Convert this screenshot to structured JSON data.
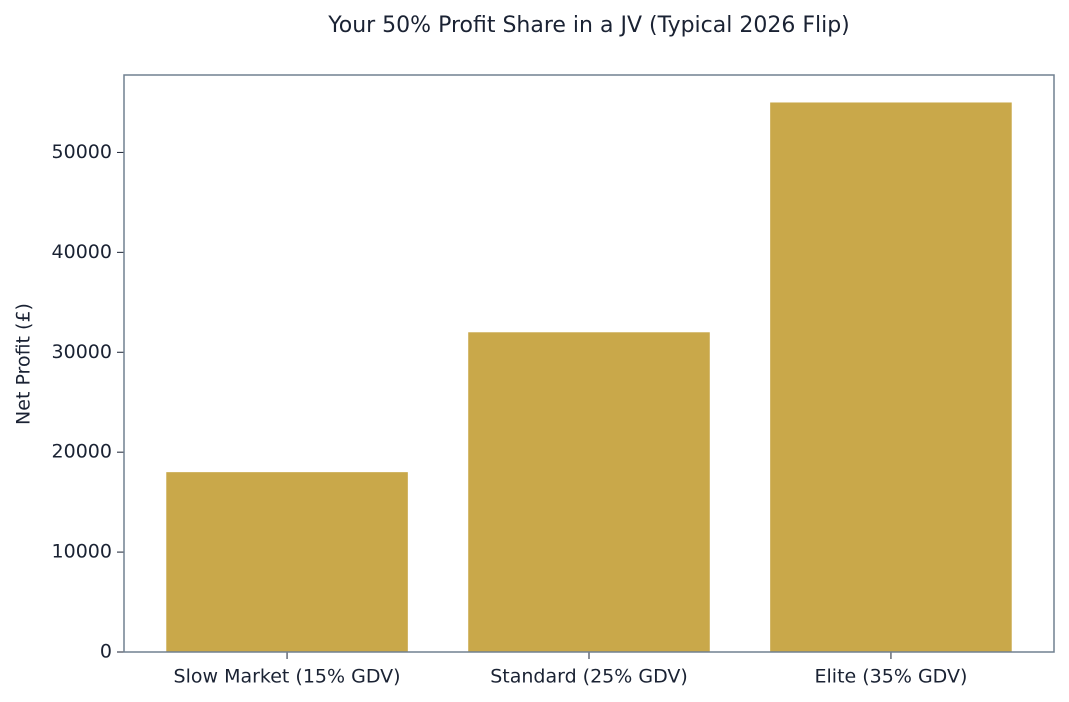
{
  "chart_data": {
    "type": "bar",
    "title": "Your 50% Profit Share in a JV (Typical 2026 Flip)",
    "y_label": "Net Profit (£)",
    "categories": [
      "Slow Market (15% GDV)",
      "Standard (25% GDV)",
      "Elite (35% GDV)"
    ],
    "values": [
      18000,
      32000,
      55000
    ],
    "color": "#c9a84a",
    "ylim": [
      0,
      57750
    ],
    "yticks": [
      0,
      10000,
      20000,
      30000,
      40000,
      50000
    ],
    "grid": false
  }
}
